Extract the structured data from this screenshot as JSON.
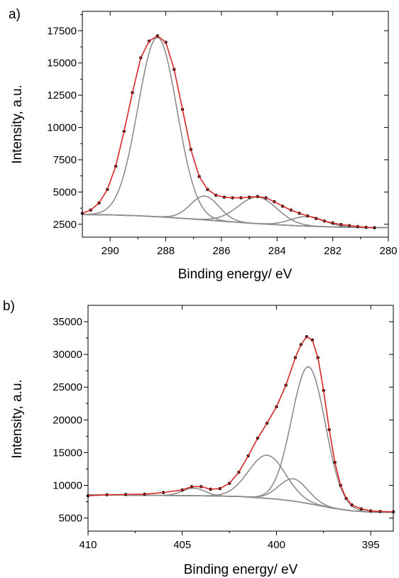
{
  "chart_data": [
    {
      "type": "line",
      "panel_label": "a)",
      "xlabel": "Binding energy/ eV",
      "ylabel": "Intensity, a.u.",
      "xlim": [
        291,
        280
      ],
      "ylim": [
        1500,
        19000
      ],
      "xticks": [
        290,
        288,
        286,
        284,
        282,
        280
      ],
      "xtick_labels": [
        "290",
        "288",
        "286",
        "284",
        "282",
        "280"
      ],
      "yticks": [
        2500,
        5000,
        7500,
        10000,
        12500,
        15000,
        17500
      ],
      "ytick_labels": [
        "2500",
        "5000",
        "7500",
        "10000",
        "12500",
        "15000",
        "17500"
      ],
      "grid": false,
      "colors": {
        "data": "#000000",
        "fit": "#d62728",
        "component": "#8c8c8c"
      },
      "baseline": {
        "x": [
          291.0,
          290.0,
          289.0,
          288.0,
          287.0,
          286.0,
          285.0,
          284.0,
          283.0,
          282.0,
          281.0,
          280.5
        ],
        "y": [
          3250,
          3230,
          3160,
          3050,
          2900,
          2740,
          2590,
          2460,
          2360,
          2290,
          2250,
          2235
        ]
      },
      "components": [
        {
          "center": 288.3,
          "height": 13900,
          "fwhm": 1.65
        },
        {
          "center": 286.6,
          "height": 1850,
          "fwhm": 1.2
        },
        {
          "center": 284.7,
          "height": 2050,
          "fwhm": 1.65
        },
        {
          "center": 282.9,
          "height": 750,
          "fwhm": 1.4
        }
      ],
      "series": [
        {
          "x": [
            291.0,
            290.7,
            290.4,
            290.1,
            289.8,
            289.5,
            289.2,
            288.9,
            288.6,
            288.3,
            288.0,
            287.7,
            287.4,
            287.1,
            286.8,
            286.5,
            286.2,
            285.9,
            285.6,
            285.3,
            285.0,
            284.7,
            284.4,
            284.1,
            283.8,
            283.5,
            283.2,
            282.9,
            282.6,
            282.3,
            282.0,
            281.7,
            281.4,
            281.1,
            280.8,
            280.5
          ],
          "y": [
            3350,
            3600,
            4150,
            5200,
            7000,
            9700,
            12700,
            15400,
            16700,
            17100,
            16600,
            14500,
            11400,
            8300,
            6200,
            5200,
            4750,
            4600,
            4550,
            4550,
            4600,
            4650,
            4550,
            4250,
            3900,
            3600,
            3350,
            3150,
            2950,
            2750,
            2600,
            2480,
            2400,
            2320,
            2260,
            2230
          ]
        }
      ]
    },
    {
      "type": "line",
      "panel_label": "b)",
      "xlabel": "Binding energy/ eV",
      "ylabel": "Intensity, a.u.",
      "xlim": [
        410,
        393.8
      ],
      "ylim": [
        3000,
        37500
      ],
      "xticks": [
        410,
        405,
        400,
        395
      ],
      "xtick_labels": [
        "410",
        "405",
        "400",
        "395"
      ],
      "yticks": [
        5000,
        10000,
        15000,
        20000,
        25000,
        30000,
        35000
      ],
      "ytick_labels": [
        "5000",
        "10000",
        "15000",
        "20000",
        "25000",
        "30000",
        "35000"
      ],
      "grid": false,
      "colors": {
        "data": "#000000",
        "fit": "#d62728",
        "component": "#8c8c8c"
      },
      "baseline": {
        "x": [
          410.0,
          408.0,
          406.0,
          404.0,
          402.0,
          400.0,
          399.0,
          398.0,
          397.0,
          396.0,
          395.0,
          393.8
        ],
        "y": [
          8550,
          8500,
          8450,
          8400,
          8300,
          7900,
          7550,
          7050,
          6500,
          6100,
          5900,
          5850
        ]
      },
      "components": [
        {
          "center": 404.4,
          "height": 1150,
          "fwhm": 1.4
        },
        {
          "center": 400.5,
          "height": 6600,
          "fwhm": 2.3
        },
        {
          "center": 399.1,
          "height": 3400,
          "fwhm": 1.8
        },
        {
          "center": 398.3,
          "height": 20900,
          "fwhm": 2.1
        }
      ],
      "series": [
        {
          "x": [
            410.0,
            409.0,
            408.0,
            407.0,
            406.0,
            405.0,
            404.5,
            404.0,
            403.5,
            403.0,
            402.5,
            402.0,
            401.5,
            401.0,
            400.5,
            400.0,
            399.5,
            399.0,
            398.7,
            398.4,
            398.1,
            397.8,
            397.5,
            397.2,
            396.9,
            396.6,
            396.3,
            396.0,
            395.5,
            395.0,
            394.5,
            393.8
          ],
          "y": [
            8400,
            8550,
            8600,
            8650,
            8900,
            9300,
            9800,
            9800,
            9400,
            9500,
            10300,
            12000,
            14500,
            17200,
            19500,
            22000,
            25300,
            29500,
            31500,
            32700,
            32200,
            29500,
            24500,
            18500,
            13500,
            10000,
            8000,
            7000,
            6400,
            6100,
            6000,
            5950
          ]
        }
      ]
    }
  ]
}
